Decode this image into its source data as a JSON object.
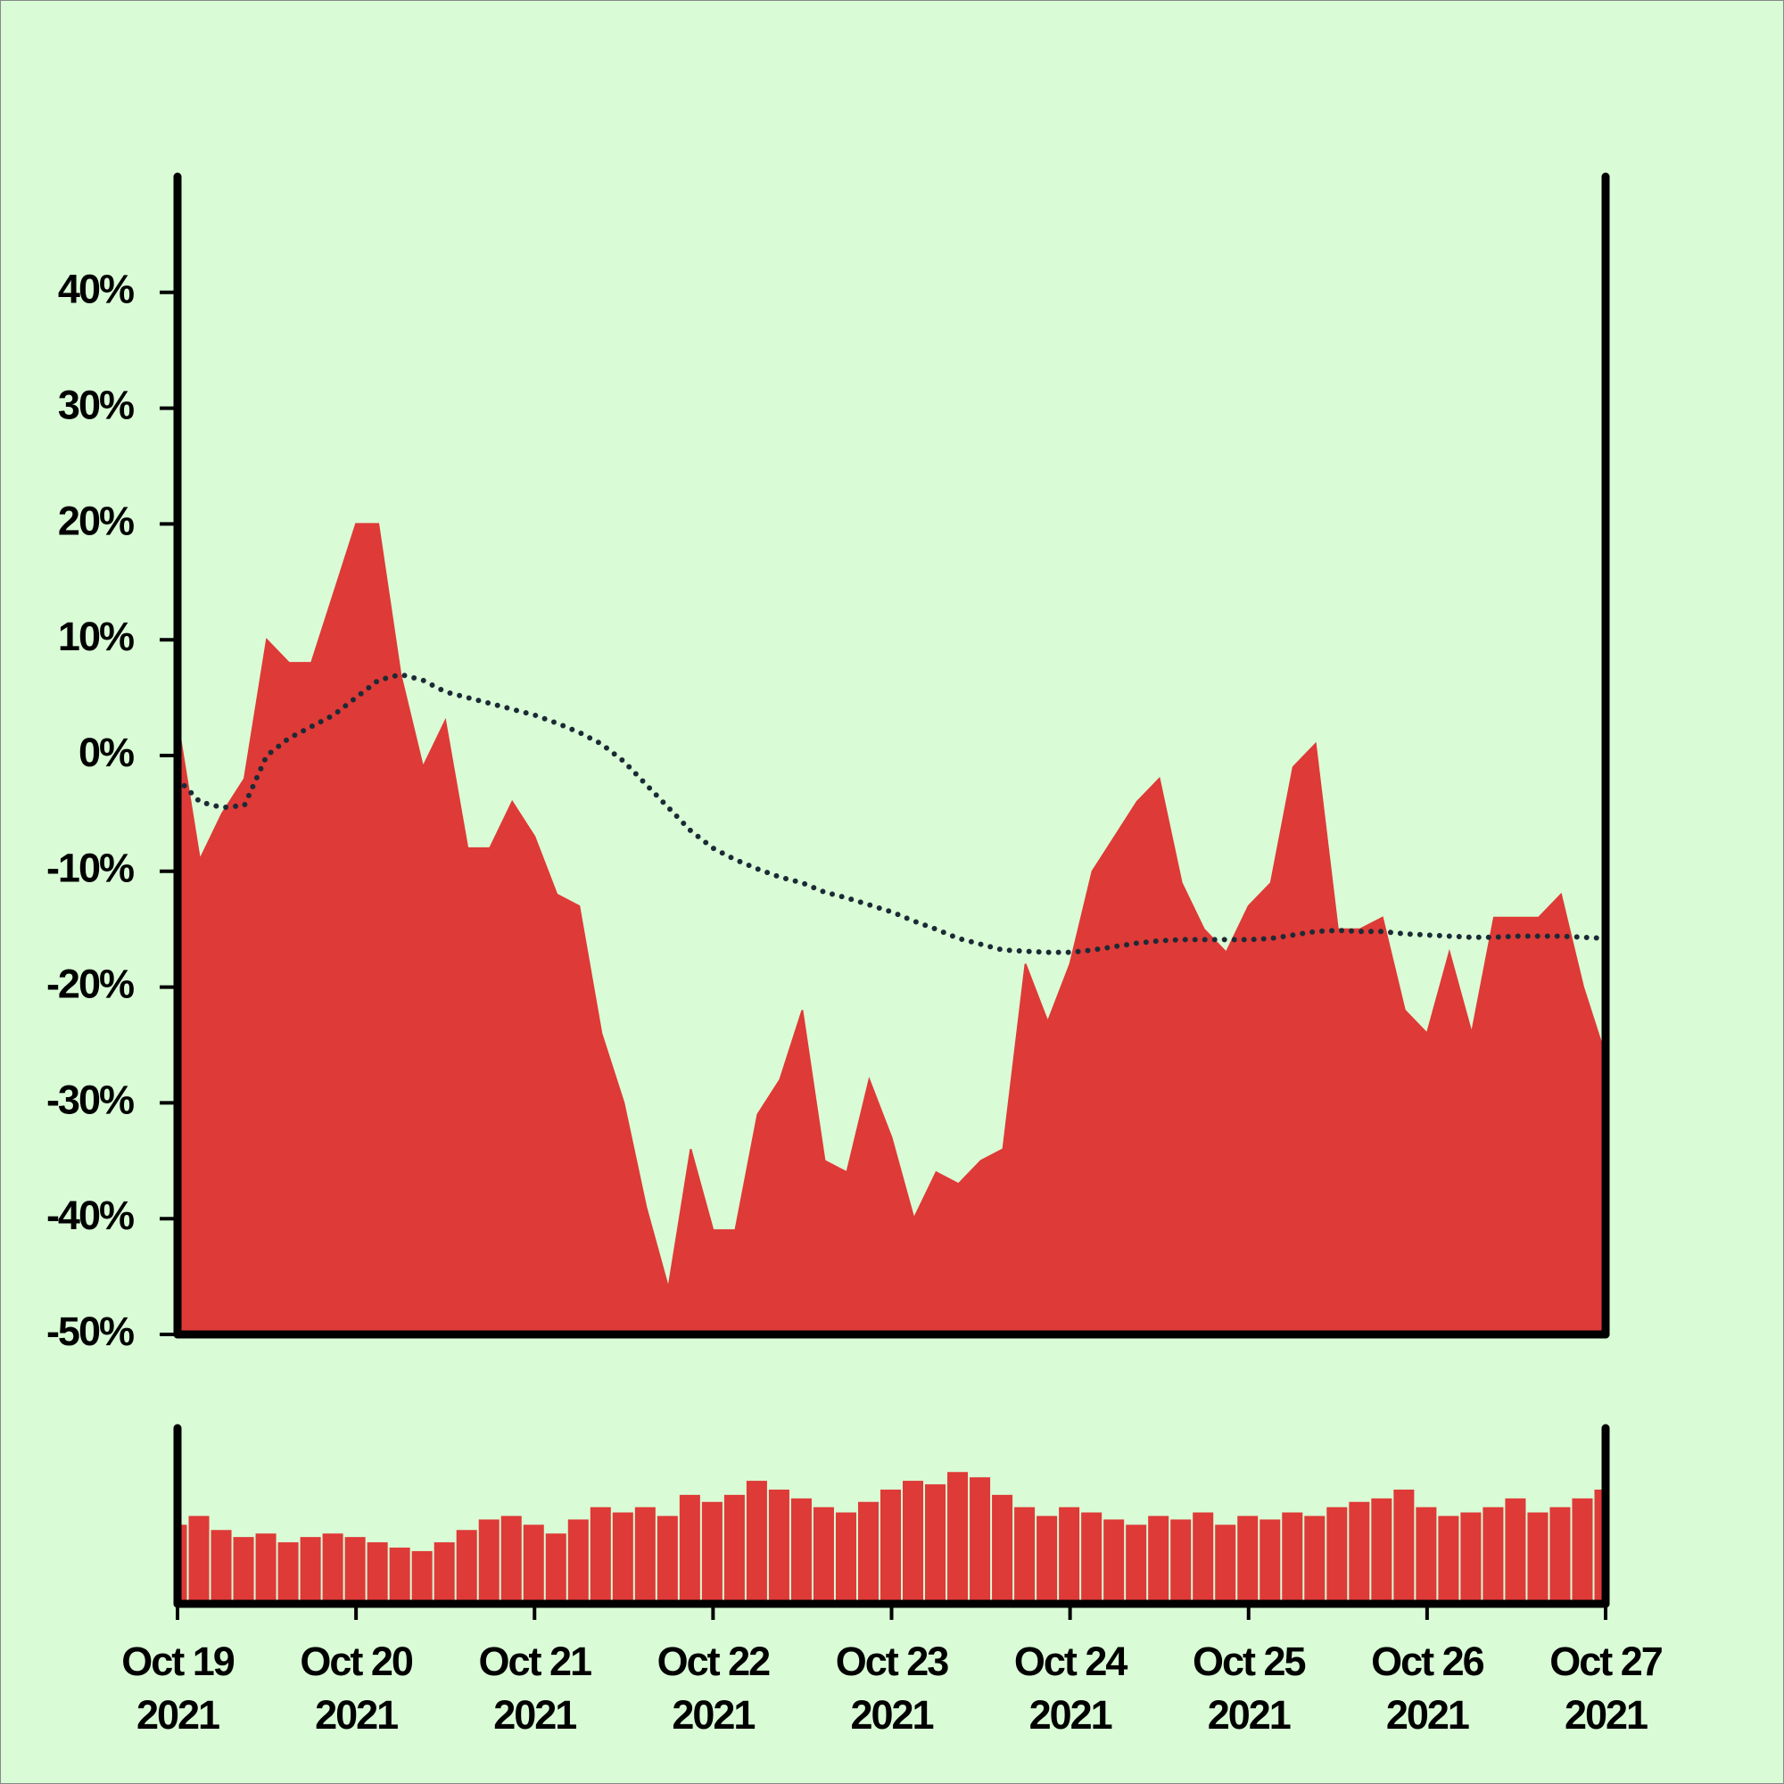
{
  "chart_data": [
    {
      "type": "area",
      "x": [
        "2021-10-19T00:00",
        "2021-10-19T03:00",
        "2021-10-19T06:00",
        "2021-10-19T09:00",
        "2021-10-19T12:00",
        "2021-10-19T15:00",
        "2021-10-19T18:00",
        "2021-10-19T21:00",
        "2021-10-20T00:00",
        "2021-10-20T03:00",
        "2021-10-20T06:00",
        "2021-10-20T09:00",
        "2021-10-20T12:00",
        "2021-10-20T15:00",
        "2021-10-20T18:00",
        "2021-10-20T21:00",
        "2021-10-21T00:00",
        "2021-10-21T03:00",
        "2021-10-21T06:00",
        "2021-10-21T09:00",
        "2021-10-21T12:00",
        "2021-10-21T15:00",
        "2021-10-21T18:00",
        "2021-10-21T21:00",
        "2021-10-22T00:00",
        "2021-10-22T03:00",
        "2021-10-22T06:00",
        "2021-10-22T09:00",
        "2021-10-22T12:00",
        "2021-10-22T15:00",
        "2021-10-22T18:00",
        "2021-10-22T21:00",
        "2021-10-23T00:00",
        "2021-10-23T03:00",
        "2021-10-23T06:00",
        "2021-10-23T09:00",
        "2021-10-23T12:00",
        "2021-10-23T15:00",
        "2021-10-23T18:00",
        "2021-10-23T21:00",
        "2021-10-24T00:00",
        "2021-10-24T03:00",
        "2021-10-24T06:00",
        "2021-10-24T09:00",
        "2021-10-24T12:00",
        "2021-10-24T15:00",
        "2021-10-24T18:00",
        "2021-10-24T21:00",
        "2021-10-25T00:00",
        "2021-10-25T03:00",
        "2021-10-25T06:00",
        "2021-10-25T09:00",
        "2021-10-25T12:00",
        "2021-10-25T15:00",
        "2021-10-25T18:00",
        "2021-10-25T21:00",
        "2021-10-26T00:00",
        "2021-10-26T03:00",
        "2021-10-26T06:00",
        "2021-10-26T09:00",
        "2021-10-26T12:00",
        "2021-10-26T15:00",
        "2021-10-26T18:00",
        "2021-10-26T21:00",
        "2021-10-27T00:00"
      ],
      "series": [
        {
          "type": "area",
          "color": "#de3a37",
          "values": [
            3,
            -9,
            -5,
            -2,
            10,
            8,
            8,
            14,
            20,
            20,
            7,
            -1,
            3,
            -8,
            -8,
            -4,
            -7,
            -12,
            -13,
            -24,
            -30,
            -39,
            -46,
            -34,
            -41,
            -41,
            -31,
            -28,
            -22,
            -35,
            -36,
            -28,
            -33,
            -40,
            -36,
            -37,
            -35,
            -34,
            -18,
            -23,
            -18,
            -10,
            -7,
            -4,
            -2,
            -11,
            -15,
            -17,
            -13,
            -11,
            -1,
            1,
            -15,
            -15,
            -14,
            -22,
            -24,
            -17,
            -24,
            -14,
            -14,
            -14,
            -12,
            -20,
            -26
          ]
        },
        {
          "type": "line",
          "style": "dotted",
          "color": "#1c2a36",
          "values": [
            -2,
            -4,
            -4.5,
            -4.3,
            0,
            1.5,
            2.5,
            3.5,
            5,
            6.5,
            7,
            6.5,
            5.5,
            5,
            4.5,
            4,
            3.5,
            2.8,
            2,
            1,
            -0.5,
            -2.5,
            -4.5,
            -6.5,
            -8,
            -9,
            -9.8,
            -10.5,
            -11,
            -11.8,
            -12.3,
            -12.9,
            -13.5,
            -14.3,
            -15,
            -15.8,
            -16.3,
            -16.8,
            -16.9,
            -17,
            -17,
            -16.8,
            -16.5,
            -16.2,
            -16,
            -15.9,
            -15.9,
            -15.9,
            -15.9,
            -15.8,
            -15.5,
            -15.2,
            -15.1,
            -15.2,
            -15.2,
            -15.4,
            -15.5,
            -15.6,
            -15.7,
            -15.7,
            -15.6,
            -15.6,
            -15.6,
            -15.7,
            -15.8
          ]
        }
      ],
      "xlim": [
        "2021-10-19",
        "2021-10-27"
      ],
      "xticks": [
        {
          "value": "2021-10-19",
          "label": [
            "Oct 19",
            "2021"
          ]
        },
        {
          "value": "2021-10-20",
          "label": [
            "Oct 20",
            "2021"
          ]
        },
        {
          "value": "2021-10-21",
          "label": [
            "Oct 21",
            "2021"
          ]
        },
        {
          "value": "2021-10-22",
          "label": [
            "Oct 22",
            "2021"
          ]
        },
        {
          "value": "2021-10-23",
          "label": [
            "Oct 23",
            "2021"
          ]
        },
        {
          "value": "2021-10-24",
          "label": [
            "Oct 24",
            "2021"
          ]
        },
        {
          "value": "2021-10-25",
          "label": [
            "Oct 25",
            "2021"
          ]
        },
        {
          "value": "2021-10-26",
          "label": [
            "Oct 26",
            "2021"
          ]
        },
        {
          "value": "2021-10-27",
          "label": [
            "Oct 27",
            "2021"
          ]
        }
      ],
      "ylim": [
        -50,
        50
      ],
      "yticks": [
        {
          "value": -50,
          "label": "-50%"
        },
        {
          "value": -40,
          "label": "-40%"
        },
        {
          "value": -30,
          "label": "-30%"
        },
        {
          "value": -20,
          "label": "-20%"
        },
        {
          "value": -10,
          "label": "-10%"
        },
        {
          "value": 0,
          "label": "0%"
        },
        {
          "value": 10,
          "label": "10%"
        },
        {
          "value": 20,
          "label": "20%"
        },
        {
          "value": 30,
          "label": "30%"
        },
        {
          "value": 40,
          "label": "40%"
        }
      ]
    },
    {
      "type": "bar",
      "color": "#de3a37",
      "x": [
        "2021-10-19T00:00",
        "2021-10-19T03:00",
        "2021-10-19T06:00",
        "2021-10-19T09:00",
        "2021-10-19T12:00",
        "2021-10-19T15:00",
        "2021-10-19T18:00",
        "2021-10-19T21:00",
        "2021-10-20T00:00",
        "2021-10-20T03:00",
        "2021-10-20T06:00",
        "2021-10-20T09:00",
        "2021-10-20T12:00",
        "2021-10-20T15:00",
        "2021-10-20T18:00",
        "2021-10-20T21:00",
        "2021-10-21T00:00",
        "2021-10-21T03:00",
        "2021-10-21T06:00",
        "2021-10-21T09:00",
        "2021-10-21T12:00",
        "2021-10-21T15:00",
        "2021-10-21T18:00",
        "2021-10-21T21:00",
        "2021-10-22T00:00",
        "2021-10-22T03:00",
        "2021-10-22T06:00",
        "2021-10-22T09:00",
        "2021-10-22T12:00",
        "2021-10-22T15:00",
        "2021-10-22T18:00",
        "2021-10-22T21:00",
        "2021-10-23T00:00",
        "2021-10-23T03:00",
        "2021-10-23T06:00",
        "2021-10-23T09:00",
        "2021-10-23T12:00",
        "2021-10-23T15:00",
        "2021-10-23T18:00",
        "2021-10-23T21:00",
        "2021-10-24T00:00",
        "2021-10-24T03:00",
        "2021-10-24T06:00",
        "2021-10-24T09:00",
        "2021-10-24T12:00",
        "2021-10-24T15:00",
        "2021-10-24T18:00",
        "2021-10-24T21:00",
        "2021-10-25T00:00",
        "2021-10-25T03:00",
        "2021-10-25T06:00",
        "2021-10-25T09:00",
        "2021-10-25T12:00",
        "2021-10-25T15:00",
        "2021-10-25T18:00",
        "2021-10-25T21:00",
        "2021-10-26T00:00",
        "2021-10-26T03:00",
        "2021-10-26T06:00",
        "2021-10-26T09:00",
        "2021-10-26T12:00",
        "2021-10-26T15:00",
        "2021-10-26T18:00",
        "2021-10-26T21:00",
        "2021-10-27T00:00"
      ],
      "values": [
        45,
        50,
        42,
        38,
        40,
        35,
        38,
        40,
        38,
        35,
        32,
        30,
        35,
        42,
        48,
        50,
        45,
        40,
        48,
        55,
        52,
        55,
        50,
        62,
        58,
        62,
        70,
        65,
        60,
        55,
        52,
        58,
        65,
        70,
        68,
        75,
        72,
        62,
        55,
        50,
        55,
        52,
        48,
        45,
        50,
        48,
        52,
        45,
        50,
        48,
        52,
        50,
        55,
        58,
        60,
        65,
        55,
        50,
        52,
        55,
        60,
        52,
        55,
        60,
        65
      ],
      "ylim": [
        0,
        100
      ]
    }
  ]
}
